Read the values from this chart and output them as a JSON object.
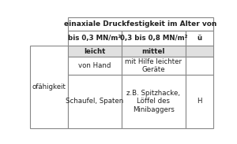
{
  "title_row": "einaxiale Druckfestigkeit im Alter von",
  "col_headers": [
    "bis 0,3 MN/m²",
    "0,3 bis 0,8 MN/m²",
    "ü"
  ],
  "row_sub_headers": [
    "leicht",
    "mittel",
    ""
  ],
  "row1_cells": [
    "von Hand",
    "mit Hilfe leichter\nGeräte",
    ""
  ],
  "row2_cells": [
    "Schaufel, Spaten",
    "z.B. Spitzhacke,\nLöffel des\nMinibaggers",
    "H"
  ],
  "left_label_full": "ofähigkeit",
  "border_color": "#888888",
  "text_color": "#222222",
  "font_size": 6.2,
  "header_bg": "#e8e8e8",
  "cell_bg": "#ffffff",
  "row_sub_bg": "#e0e0e0"
}
